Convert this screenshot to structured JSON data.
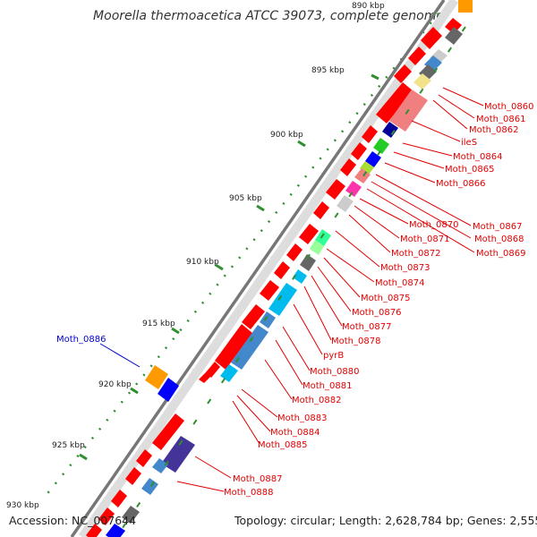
{
  "title": "Moorella thermoacetica ATCC 39073, complete genome",
  "footer": {
    "accession": "Accession: NC_007644",
    "summary": "Topology: circular; Length: 2,628,784 bp; Genes: 2,555"
  },
  "ticks": [
    "890 kbp",
    "895 kbp",
    "900 kbp",
    "905 kbp",
    "910 kbp",
    "915 kbp",
    "920 kbp",
    "925 kbp",
    "930 kbp"
  ],
  "gene_labels": [
    "Moth_0860",
    "Moth_0861",
    "Moth_0862",
    "ileS",
    "Moth_0864",
    "Moth_0865",
    "Moth_0866",
    "Moth_0867",
    "Moth_0868",
    "Moth_0869",
    "Moth_0870",
    "Moth_0871",
    "Moth_0872",
    "Moth_0873",
    "Moth_0874",
    "Moth_0875",
    "Moth_0876",
    "Moth_0877",
    "Moth_0878",
    "pyrB",
    "Moth_0880",
    "Moth_0881",
    "Moth_0882",
    "Moth_0883",
    "Moth_0884",
    "Moth_0885",
    "Moth_0887",
    "Moth_0888"
  ],
  "highlight_label": "Moth_0886",
  "colors": {
    "label_red": "#e00000",
    "label_blue": "#0000cc",
    "backbone": "#777777",
    "gc_skew": "#2f8f2f"
  }
}
